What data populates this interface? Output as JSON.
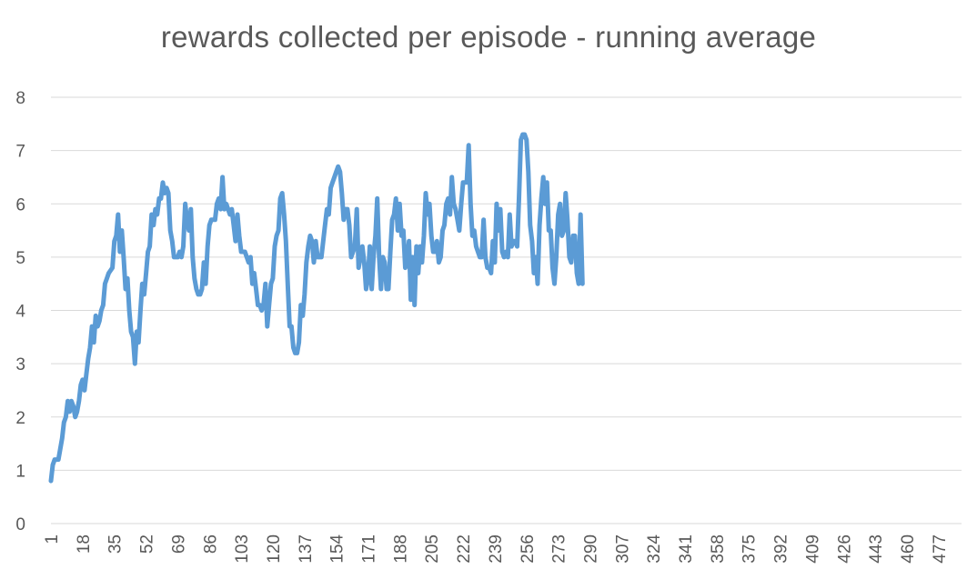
{
  "chart_data": {
    "type": "line",
    "title": "rewards collected per episode - running average",
    "xlabel": "",
    "ylabel": "",
    "ylim": [
      0,
      8
    ],
    "xlim": [
      1,
      484
    ],
    "yticks": [
      "0",
      "1",
      "2",
      "3",
      "4",
      "5",
      "6",
      "7",
      "8"
    ],
    "xticks": [
      "1",
      "18",
      "35",
      "52",
      "69",
      "86",
      "103",
      "120",
      "137",
      "154",
      "171",
      "188",
      "205",
      "222",
      "239",
      "256",
      "273",
      "290",
      "307",
      "324",
      "341",
      "358",
      "375",
      "392",
      "409",
      "426",
      "443",
      "460",
      "477"
    ],
    "grid": "horizontal",
    "legend": "none",
    "color": "#5B9BD5",
    "points": [
      [
        1,
        0.8
      ],
      [
        2,
        1.1
      ],
      [
        3,
        1.2
      ],
      [
        5,
        1.2
      ],
      [
        7,
        1.6
      ],
      [
        8,
        1.9
      ],
      [
        9,
        2.0
      ],
      [
        10,
        2.3
      ],
      [
        11,
        2.1
      ],
      [
        12,
        2.3
      ],
      [
        13,
        2.2
      ],
      [
        14,
        2.0
      ],
      [
        15,
        2.1
      ],
      [
        16,
        2.3
      ],
      [
        17,
        2.6
      ],
      [
        18,
        2.7
      ],
      [
        19,
        2.5
      ],
      [
        20,
        2.8
      ],
      [
        21,
        3.1
      ],
      [
        22,
        3.3
      ],
      [
        23,
        3.7
      ],
      [
        24,
        3.4
      ],
      [
        25,
        3.9
      ],
      [
        26,
        3.7
      ],
      [
        27,
        3.8
      ],
      [
        28,
        4.0
      ],
      [
        29,
        4.1
      ],
      [
        30,
        4.5
      ],
      [
        31,
        4.6
      ],
      [
        32,
        4.7
      ],
      [
        34,
        4.8
      ],
      [
        35,
        5.3
      ],
      [
        36,
        5.4
      ],
      [
        37,
        5.8
      ],
      [
        38,
        5.1
      ],
      [
        39,
        5.5
      ],
      [
        40,
        5.0
      ],
      [
        41,
        4.4
      ],
      [
        42,
        4.6
      ],
      [
        43,
        4.0
      ],
      [
        44,
        3.6
      ],
      [
        45,
        3.5
      ],
      [
        46,
        3.0
      ],
      [
        47,
        3.6
      ],
      [
        48,
        3.4
      ],
      [
        49,
        4.0
      ],
      [
        50,
        4.5
      ],
      [
        51,
        4.3
      ],
      [
        52,
        4.7
      ],
      [
        53,
        5.1
      ],
      [
        54,
        5.2
      ],
      [
        55,
        5.8
      ],
      [
        56,
        5.6
      ],
      [
        57,
        5.9
      ],
      [
        58,
        5.8
      ],
      [
        59,
        6.1
      ],
      [
        60,
        6.1
      ],
      [
        61,
        6.4
      ],
      [
        62,
        6.2
      ],
      [
        63,
        6.3
      ],
      [
        64,
        6.2
      ],
      [
        65,
        5.5
      ],
      [
        66,
        5.3
      ],
      [
        67,
        5.0
      ],
      [
        68,
        5.0
      ],
      [
        69,
        5.0
      ],
      [
        70,
        5.1
      ],
      [
        71,
        5.0
      ],
      [
        72,
        5.2
      ],
      [
        73,
        6.0
      ],
      [
        74,
        5.7
      ],
      [
        75,
        5.5
      ],
      [
        76,
        5.9
      ],
      [
        77,
        5.0
      ],
      [
        78,
        4.6
      ],
      [
        79,
        4.4
      ],
      [
        80,
        4.3
      ],
      [
        81,
        4.3
      ],
      [
        82,
        4.4
      ],
      [
        83,
        4.9
      ],
      [
        84,
        4.5
      ],
      [
        85,
        5.2
      ],
      [
        86,
        5.6
      ],
      [
        87,
        5.7
      ],
      [
        88,
        5.7
      ],
      [
        89,
        5.7
      ],
      [
        90,
        6.0
      ],
      [
        91,
        6.1
      ],
      [
        92,
        5.9
      ],
      [
        93,
        6.5
      ],
      [
        94,
        5.9
      ],
      [
        95,
        6.0
      ],
      [
        96,
        5.9
      ],
      [
        97,
        5.8
      ],
      [
        98,
        5.9
      ],
      [
        99,
        5.6
      ],
      [
        100,
        5.3
      ],
      [
        101,
        5.8
      ],
      [
        102,
        5.4
      ],
      [
        103,
        5.1
      ],
      [
        104,
        5.1
      ],
      [
        105,
        5.1
      ],
      [
        106,
        5.0
      ],
      [
        107,
        4.9
      ],
      [
        108,
        5.0
      ],
      [
        109,
        4.5
      ],
      [
        110,
        4.7
      ],
      [
        111,
        4.4
      ],
      [
        112,
        4.1
      ],
      [
        113,
        4.1
      ],
      [
        114,
        4.0
      ],
      [
        115,
        4.1
      ],
      [
        116,
        4.5
      ],
      [
        117,
        3.7
      ],
      [
        118,
        4.1
      ],
      [
        119,
        4.5
      ],
      [
        120,
        4.6
      ],
      [
        121,
        5.2
      ],
      [
        122,
        5.4
      ],
      [
        123,
        5.5
      ],
      [
        124,
        6.1
      ],
      [
        125,
        6.2
      ],
      [
        126,
        5.8
      ],
      [
        127,
        5.3
      ],
      [
        128,
        4.5
      ],
      [
        129,
        3.7
      ],
      [
        130,
        3.7
      ],
      [
        131,
        3.3
      ],
      [
        132,
        3.2
      ],
      [
        133,
        3.2
      ],
      [
        134,
        3.4
      ],
      [
        135,
        4.1
      ],
      [
        136,
        3.9
      ],
      [
        137,
        4.3
      ],
      [
        138,
        4.9
      ],
      [
        139,
        5.2
      ],
      [
        140,
        5.4
      ],
      [
        141,
        5.3
      ],
      [
        142,
        4.9
      ],
      [
        143,
        5.3
      ],
      [
        144,
        5.0
      ],
      [
        145,
        5.0
      ],
      [
        146,
        5.0
      ],
      [
        147,
        5.3
      ],
      [
        148,
        5.6
      ],
      [
        149,
        5.9
      ],
      [
        150,
        5.8
      ],
      [
        151,
        6.3
      ],
      [
        152,
        6.4
      ],
      [
        153,
        6.5
      ],
      [
        154,
        6.6
      ],
      [
        155,
        6.7
      ],
      [
        156,
        6.6
      ],
      [
        157,
        6.2
      ],
      [
        158,
        5.7
      ],
      [
        159,
        5.9
      ],
      [
        160,
        5.9
      ],
      [
        161,
        5.6
      ],
      [
        162,
        5.0
      ],
      [
        163,
        5.1
      ],
      [
        164,
        5.2
      ],
      [
        165,
        5.9
      ],
      [
        166,
        4.8
      ],
      [
        167,
        5.0
      ],
      [
        168,
        5.2
      ],
      [
        169,
        4.9
      ],
      [
        170,
        4.4
      ],
      [
        171,
        4.6
      ],
      [
        172,
        5.2
      ],
      [
        173,
        4.4
      ],
      [
        174,
        5.0
      ],
      [
        175,
        5.4
      ],
      [
        176,
        6.1
      ],
      [
        177,
        5.0
      ],
      [
        178,
        4.4
      ],
      [
        179,
        5.0
      ],
      [
        180,
        4.9
      ],
      [
        181,
        4.4
      ],
      [
        182,
        4.4
      ],
      [
        183,
        5.1
      ],
      [
        184,
        5.7
      ],
      [
        185,
        5.8
      ],
      [
        186,
        6.1
      ],
      [
        187,
        5.5
      ],
      [
        188,
        6.0
      ],
      [
        189,
        5.4
      ],
      [
        190,
        5.5
      ],
      [
        191,
        4.8
      ],
      [
        192,
        4.9
      ],
      [
        193,
        5.3
      ],
      [
        194,
        4.2
      ],
      [
        195,
        5.0
      ],
      [
        196,
        4.1
      ],
      [
        197,
        5.2
      ],
      [
        198,
        4.7
      ],
      [
        199,
        5.2
      ],
      [
        200,
        4.9
      ],
      [
        201,
        5.4
      ],
      [
        202,
        6.2
      ],
      [
        203,
        5.8
      ],
      [
        204,
        6.0
      ],
      [
        205,
        5.4
      ],
      [
        206,
        5.1
      ],
      [
        207,
        5.1
      ],
      [
        208,
        5.3
      ],
      [
        209,
        4.9
      ],
      [
        210,
        5.0
      ],
      [
        211,
        5.5
      ],
      [
        212,
        5.6
      ],
      [
        213,
        6.0
      ],
      [
        214,
        6.1
      ],
      [
        215,
        5.8
      ],
      [
        216,
        6.5
      ],
      [
        217,
        6.0
      ],
      [
        218,
        5.9
      ],
      [
        219,
        5.7
      ],
      [
        220,
        5.5
      ],
      [
        221,
        6.0
      ],
      [
        222,
        6.4
      ],
      [
        223,
        6.4
      ],
      [
        224,
        6.4
      ],
      [
        225,
        7.1
      ],
      [
        226,
        6.0
      ],
      [
        227,
        5.4
      ],
      [
        228,
        5.5
      ],
      [
        229,
        5.2
      ],
      [
        230,
        5.1
      ],
      [
        231,
        5.0
      ],
      [
        232,
        5.0
      ],
      [
        233,
        5.7
      ],
      [
        234,
        5.0
      ],
      [
        235,
        4.8
      ],
      [
        236,
        4.8
      ],
      [
        237,
        4.7
      ],
      [
        238,
        5.3
      ],
      [
        239,
        4.9
      ],
      [
        240,
        6.0
      ],
      [
        241,
        5.5
      ],
      [
        242,
        5.9
      ],
      [
        243,
        5.1
      ],
      [
        244,
        5.0
      ],
      [
        245,
        5.1
      ],
      [
        246,
        5.0
      ],
      [
        247,
        5.8
      ],
      [
        248,
        5.2
      ],
      [
        249,
        5.3
      ],
      [
        250,
        5.3
      ],
      [
        251,
        5.2
      ],
      [
        252,
        6.1
      ],
      [
        253,
        7.2
      ],
      [
        254,
        7.3
      ],
      [
        255,
        7.3
      ],
      [
        256,
        7.2
      ],
      [
        257,
        6.6
      ],
      [
        258,
        5.6
      ],
      [
        259,
        5.3
      ],
      [
        260,
        4.7
      ],
      [
        261,
        5.0
      ],
      [
        262,
        4.5
      ],
      [
        263,
        5.6
      ],
      [
        264,
        6.1
      ],
      [
        265,
        6.5
      ],
      [
        266,
        6.0
      ],
      [
        267,
        6.4
      ],
      [
        268,
        5.5
      ],
      [
        269,
        5.5
      ],
      [
        270,
        4.8
      ],
      [
        271,
        4.5
      ],
      [
        272,
        5.0
      ],
      [
        273,
        5.8
      ],
      [
        274,
        6.0
      ],
      [
        275,
        5.4
      ],
      [
        276,
        5.5
      ],
      [
        277,
        6.2
      ],
      [
        278,
        5.7
      ],
      [
        279,
        5.0
      ],
      [
        280,
        4.9
      ],
      [
        281,
        5.4
      ],
      [
        282,
        5.4
      ],
      [
        283,
        4.7
      ],
      [
        284,
        4.5
      ],
      [
        285,
        5.8
      ],
      [
        286,
        4.5
      ]
    ]
  }
}
